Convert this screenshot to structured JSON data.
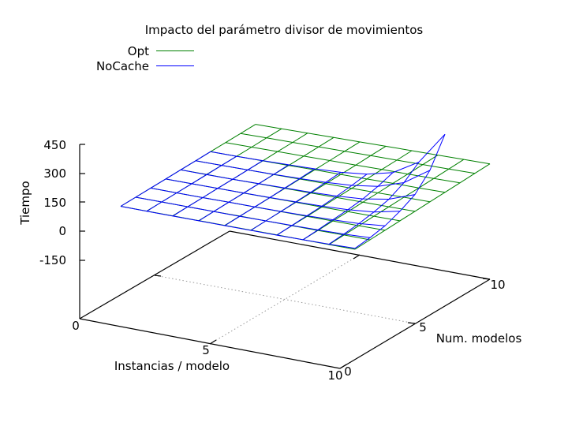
{
  "chart_data": {
    "type": "surface",
    "title": "Impacto del parámetro divisor de movimientos",
    "xlabel": "Instancias / modelo",
    "ylabel": "Num. modelos",
    "zlabel": "Tiempo",
    "x_range": [
      0,
      10
    ],
    "y_range": [
      0,
      10
    ],
    "z_range": [
      -150,
      450
    ],
    "x_ticks": [
      "0",
      "5",
      "10"
    ],
    "y_ticks": [
      "0",
      "5",
      "10"
    ],
    "z_ticks": [
      "-150",
      "0",
      "150",
      "300",
      "450"
    ],
    "legend_position": "top-left",
    "grid": [
      0,
      1,
      2,
      3,
      4,
      5,
      6,
      7,
      8,
      9,
      10
    ],
    "series": [
      {
        "name": "Opt",
        "color": "#008000",
        "grid_x": [
          1,
          2,
          3,
          4,
          5,
          6,
          7,
          8,
          9,
          10
        ],
        "grid_y": [
          1,
          2,
          3,
          4,
          5,
          6,
          7,
          8,
          9,
          10
        ],
        "values": [
          [
            2,
            3,
            4,
            5,
            6,
            7,
            8,
            9,
            10,
            11
          ],
          [
            3,
            4,
            5,
            6,
            8,
            9,
            10,
            11,
            13,
            14
          ],
          [
            4,
            5,
            6,
            8,
            9,
            11,
            12,
            14,
            15,
            17
          ],
          [
            5,
            6,
            8,
            9,
            11,
            13,
            14,
            16,
            18,
            20
          ],
          [
            6,
            8,
            9,
            11,
            13,
            15,
            17,
            19,
            21,
            23
          ],
          [
            7,
            9,
            11,
            13,
            15,
            17,
            19,
            21,
            24,
            26
          ],
          [
            8,
            10,
            12,
            14,
            17,
            19,
            21,
            24,
            26,
            29
          ],
          [
            9,
            11,
            14,
            16,
            19,
            21,
            24,
            26,
            29,
            32
          ],
          [
            10,
            13,
            15,
            18,
            21,
            24,
            26,
            29,
            32,
            35
          ],
          [
            11,
            14,
            17,
            20,
            23,
            26,
            29,
            32,
            35,
            38
          ]
        ]
      },
      {
        "name": "NoCache",
        "color": "#0000ff",
        "grid_x": [
          1,
          2,
          3,
          4,
          5,
          6,
          7,
          8,
          9,
          10
        ],
        "grid_y": [
          1,
          2,
          3,
          4,
          5,
          6,
          7
        ],
        "values": [
          [
            2,
            2,
            3,
            4,
            5,
            6,
            7,
            9,
            12,
            16
          ],
          [
            3,
            4,
            5,
            6,
            7,
            9,
            11,
            14,
            18,
            25
          ],
          [
            4,
            5,
            6,
            8,
            10,
            12,
            15,
            20,
            26,
            40
          ],
          [
            5,
            6,
            8,
            10,
            12,
            15,
            19,
            26,
            40,
            70
          ],
          [
            6,
            7,
            9,
            12,
            15,
            19,
            25,
            36,
            60,
            110
          ],
          [
            7,
            9,
            11,
            14,
            18,
            24,
            34,
            55,
            100,
            190
          ],
          [
            8,
            10,
            13,
            17,
            22,
            30,
            46,
            80,
            160,
            330
          ]
        ]
      }
    ]
  }
}
